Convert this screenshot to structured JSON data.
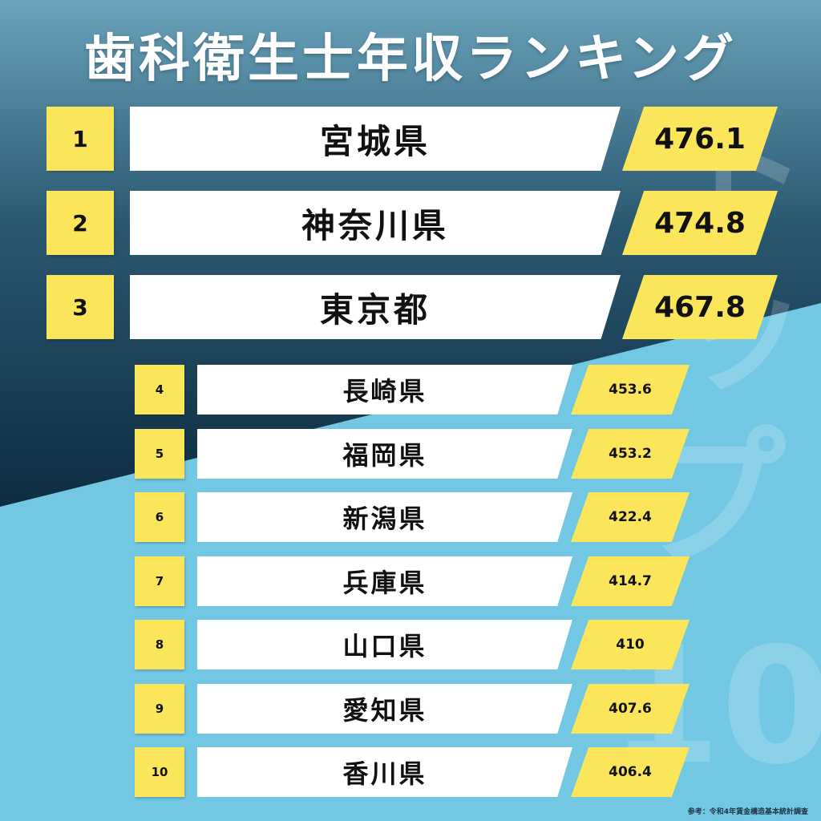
{
  "title": "歯科衛生士年収ランキング",
  "watermark": {
    "chars": [
      "ト",
      "ッ",
      "プ",
      "10"
    ]
  },
  "colors": {
    "background_light": "#72c8e3",
    "background_dark_top": "#5f93ab",
    "background_dark_bottom": "#0f2e42",
    "accent_yellow": "#fbe55a",
    "card_white": "#ffffff"
  },
  "ranking": [
    {
      "rank": "1",
      "name": "宮城県",
      "value": "476.1"
    },
    {
      "rank": "2",
      "name": "神奈川県",
      "value": "474.8"
    },
    {
      "rank": "3",
      "name": "東京都",
      "value": "467.8"
    },
    {
      "rank": "4",
      "name": "長崎県",
      "value": "453.6"
    },
    {
      "rank": "5",
      "name": "福岡県",
      "value": "453.2"
    },
    {
      "rank": "6",
      "name": "新潟県",
      "value": "422.4"
    },
    {
      "rank": "7",
      "name": "兵庫県",
      "value": "414.7"
    },
    {
      "rank": "8",
      "name": "山口県",
      "value": "410"
    },
    {
      "rank": "9",
      "name": "愛知県",
      "value": "407.6"
    },
    {
      "rank": "10",
      "name": "香川県",
      "value": "406.4"
    }
  ],
  "footer": "参考：令和4年賃金構造基本統計調査"
}
